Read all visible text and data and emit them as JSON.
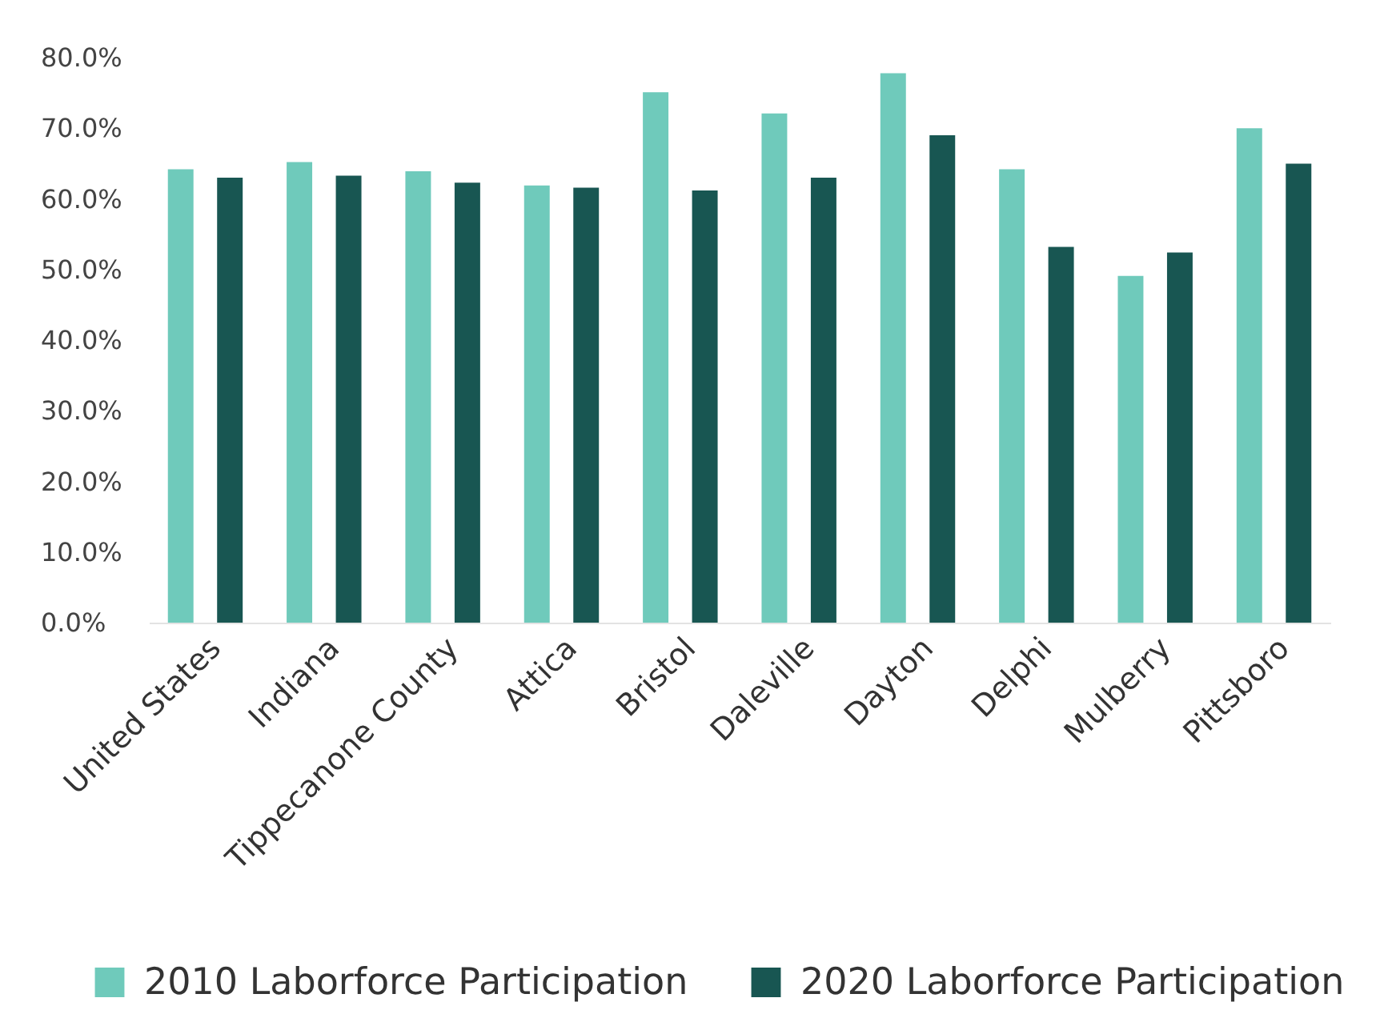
{
  "chart_data": {
    "type": "bar",
    "categories": [
      "United States",
      "Indiana",
      "Tippecanone County",
      "Attica",
      "Bristol",
      "Daleville",
      "Dayton",
      "Delphi",
      "Mulberry",
      "Pittsboro"
    ],
    "series": [
      {
        "name": "2010 Laborforce Participation",
        "color": "#6fcabb",
        "values": [
          64.2,
          65.2,
          63.9,
          61.9,
          75.1,
          72.1,
          77.8,
          64.2,
          49.1,
          70.0
        ]
      },
      {
        "name": "2020 Laborforce Participation",
        "color": "#185652",
        "values": [
          63.0,
          63.3,
          62.3,
          61.6,
          61.2,
          63.0,
          69.0,
          53.2,
          52.4,
          65.0
        ]
      }
    ],
    "ylim": [
      0,
      80
    ],
    "yticks": [
      {
        "value": 0,
        "label": "0.0%"
      },
      {
        "value": 10,
        "label": "10.0%"
      },
      {
        "value": 20,
        "label": "20.0%"
      },
      {
        "value": 30,
        "label": "30.0%"
      },
      {
        "value": 40,
        "label": "40.0%"
      },
      {
        "value": 50,
        "label": "50.0%"
      },
      {
        "value": 60,
        "label": "60.0%"
      },
      {
        "value": 70,
        "label": "70.0%"
      },
      {
        "value": 80,
        "label": "80.0%"
      }
    ],
    "legend": "bottom"
  }
}
